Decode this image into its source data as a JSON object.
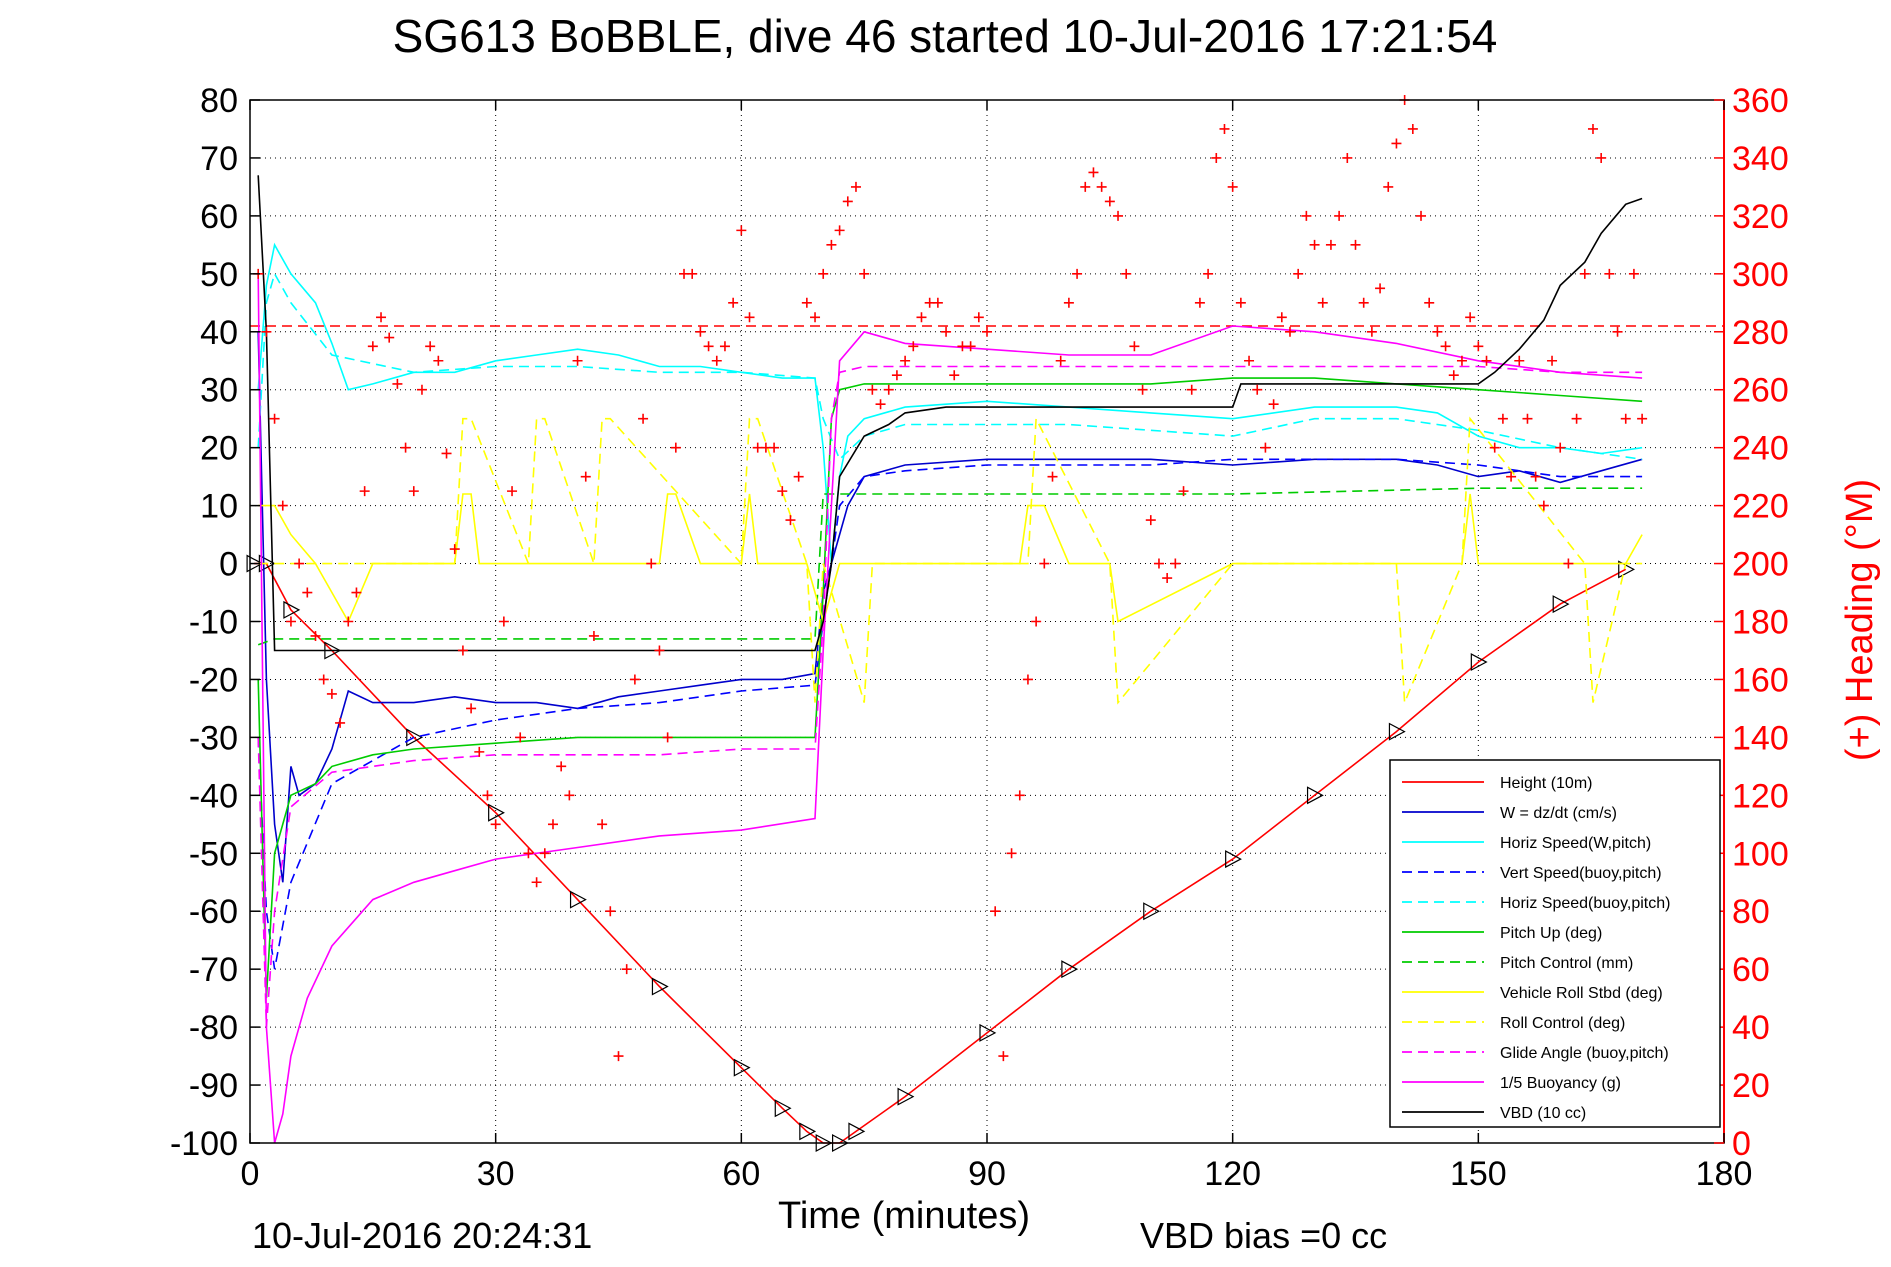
{
  "chart_data": {
    "type": "line",
    "title": "SG613 BoBBLE, dive 46 started 10-Jul-2016 17:21:54",
    "xlabel": "Time (minutes)",
    "ylabel_right": "(+) Heading (°M)",
    "footer_left": "10-Jul-2016 20:24:31",
    "footer_right": "VBD bias =0 cc",
    "xlim": [
      0,
      180
    ],
    "ylim_left": [
      -100,
      80
    ],
    "ylim_right": [
      0,
      360
    ],
    "x_ticks": [
      "0",
      "30",
      "60",
      "90",
      "120",
      "150",
      "180"
    ],
    "y_ticks_left": [
      "80",
      "70",
      "60",
      "50",
      "40",
      "30",
      "20",
      "10",
      "0",
      "-10",
      "-20",
      "-30",
      "-40",
      "-50",
      "-60",
      "-70",
      "-80",
      "-90",
      "-100"
    ],
    "y_ticks_right": [
      "360",
      "340",
      "320",
      "300",
      "280",
      "260",
      "240",
      "220",
      "200",
      "180",
      "160",
      "140",
      "120",
      "100",
      "80",
      "60",
      "40",
      "20",
      "0"
    ],
    "grid": true,
    "legend_position": "bottom-right",
    "series": [
      {
        "name": "Height (10m)",
        "color": "#ff0000",
        "style": "solid",
        "marker": "triangle",
        "x": [
          0.5,
          2,
          5,
          10,
          20,
          30,
          40,
          50,
          60,
          65,
          68,
          70,
          72,
          74,
          80,
          90,
          100,
          110,
          120,
          130,
          140,
          150,
          160,
          168
        ],
        "y": [
          0,
          0,
          -8,
          -15,
          -30,
          -43,
          -58,
          -73,
          -87,
          -94,
          -98,
          -100,
          -100,
          -98,
          -92,
          -81,
          -70,
          -60,
          -51,
          -40,
          -29,
          -17,
          -7,
          -1
        ]
      },
      {
        "name": "W = dz/dt (cm/s)",
        "color": "#0000cc",
        "style": "solid",
        "x": [
          1,
          2,
          3,
          4,
          5,
          6,
          8,
          10,
          12,
          15,
          20,
          25,
          30,
          35,
          40,
          45,
          50,
          55,
          60,
          65,
          69,
          70,
          71,
          72,
          73,
          75,
          80,
          90,
          100,
          110,
          120,
          130,
          140,
          145,
          150,
          155,
          160,
          165,
          170
        ],
        "y": [
          40,
          -20,
          -45,
          -55,
          -35,
          -40,
          -38,
          -32,
          -22,
          -24,
          -24,
          -23,
          -24,
          -24,
          -25,
          -23,
          -22,
          -21,
          -20,
          -20,
          -19,
          -5,
          0,
          5,
          10,
          15,
          17,
          18,
          18,
          18,
          17,
          18,
          18,
          17,
          15,
          16,
          14,
          16,
          18
        ]
      },
      {
        "name": "Horiz Speed(W,pitch)",
        "color": "#00ffff",
        "style": "solid",
        "x": [
          1,
          2,
          3,
          5,
          8,
          10,
          12,
          15,
          20,
          25,
          30,
          35,
          40,
          45,
          50,
          55,
          60,
          65,
          69,
          70,
          71,
          72,
          73,
          75,
          80,
          90,
          100,
          110,
          120,
          130,
          140,
          145,
          150,
          155,
          160,
          165,
          170
        ],
        "y": [
          30,
          48,
          55,
          50,
          45,
          38,
          30,
          31,
          33,
          33,
          35,
          36,
          37,
          36,
          34,
          34,
          33,
          32,
          32,
          20,
          0,
          15,
          22,
          25,
          27,
          28,
          27,
          26,
          25,
          27,
          27,
          26,
          22,
          20,
          20,
          19,
          20
        ]
      },
      {
        "name": "Vert Speed(buoy,pitch)",
        "color": "#0000ff",
        "style": "dashed",
        "x": [
          1,
          2,
          3,
          5,
          10,
          20,
          30,
          40,
          50,
          60,
          69,
          70,
          71,
          72,
          75,
          80,
          90,
          100,
          110,
          120,
          130,
          140,
          150,
          160,
          170
        ],
        "y": [
          -30,
          -60,
          -70,
          -55,
          -38,
          -30,
          -27,
          -25,
          -24,
          -22,
          -21,
          -10,
          0,
          10,
          15,
          16,
          17,
          17,
          17,
          18,
          18,
          18,
          17,
          15,
          15
        ]
      },
      {
        "name": "Horiz Speed(buoy,pitch)",
        "color": "#00ffff",
        "style": "dashed",
        "x": [
          1,
          2,
          3,
          5,
          10,
          20,
          30,
          40,
          50,
          60,
          69,
          70,
          72,
          75,
          80,
          90,
          100,
          110,
          120,
          130,
          140,
          150,
          160,
          170
        ],
        "y": [
          20,
          45,
          50,
          45,
          36,
          33,
          34,
          34,
          33,
          33,
          32,
          25,
          18,
          22,
          24,
          24,
          24,
          23,
          22,
          25,
          25,
          23,
          20,
          18
        ]
      },
      {
        "name": "Pitch Up (deg)",
        "color": "#00cc00",
        "style": "solid",
        "x": [
          1,
          2,
          3,
          5,
          8,
          10,
          15,
          20,
          30,
          40,
          50,
          60,
          69,
          70,
          71,
          72,
          75,
          80,
          90,
          100,
          110,
          120,
          130,
          140,
          150,
          160,
          170
        ],
        "y": [
          -20,
          -75,
          -50,
          -40,
          -38,
          -35,
          -33,
          -32,
          -31,
          -30,
          -30,
          -30,
          -30,
          -5,
          25,
          30,
          31,
          31,
          31,
          31,
          31,
          32,
          32,
          31,
          30,
          29,
          28
        ]
      },
      {
        "name": "Pitch Control (mm)",
        "color": "#00cc00",
        "style": "dashed",
        "x": [
          1,
          3,
          69,
          70,
          75,
          120,
          150,
          170
        ],
        "y": [
          -14,
          -13,
          -13,
          12,
          12,
          12,
          13,
          13
        ]
      },
      {
        "name": "Vehicle Roll Stbd (deg)",
        "color": "#ffff00",
        "style": "solid",
        "x": [
          1,
          3,
          5,
          8,
          10,
          12,
          15,
          20,
          25,
          26,
          27,
          28,
          30,
          35,
          50,
          51,
          52,
          55,
          60,
          61,
          62,
          68,
          70,
          72,
          75,
          80,
          94,
          95,
          97,
          100,
          105,
          106,
          120,
          140,
          148,
          149,
          150,
          160,
          168,
          170
        ],
        "y": [
          10,
          10,
          5,
          0,
          -5,
          -10,
          0,
          0,
          0,
          12,
          12,
          0,
          0,
          0,
          0,
          12,
          12,
          0,
          0,
          12,
          0,
          0,
          -10,
          0,
          0,
          0,
          0,
          10,
          10,
          0,
          0,
          -10,
          0,
          0,
          0,
          12,
          0,
          0,
          0,
          5
        ]
      },
      {
        "name": "Roll Control (deg)",
        "color": "#ffff00",
        "style": "dashed",
        "x": [
          1,
          5,
          10,
          25,
          26,
          27,
          34,
          35,
          36,
          42,
          43,
          44,
          60,
          61,
          62,
          68,
          69,
          70,
          75,
          76,
          95,
          96,
          105,
          106,
          120,
          140,
          141,
          148,
          149,
          163,
          164,
          168,
          170
        ],
        "y": [
          0,
          0,
          0,
          0,
          25,
          25,
          0,
          25,
          25,
          0,
          25,
          25,
          0,
          25,
          25,
          0,
          -24,
          0,
          -24,
          0,
          0,
          25,
          0,
          -24,
          0,
          0,
          -24,
          0,
          25,
          0,
          -24,
          0,
          0
        ]
      },
      {
        "name": "Glide Angle (buoy,pitch)",
        "color": "#ff00ff",
        "style": "dashed",
        "x": [
          1,
          2,
          3,
          5,
          10,
          20,
          30,
          40,
          50,
          60,
          69,
          70,
          71,
          72,
          75,
          80,
          90,
          100,
          110,
          120,
          130,
          140,
          150,
          160,
          170
        ],
        "y": [
          -30,
          -80,
          -60,
          -42,
          -36,
          -34,
          -33,
          -33,
          -33,
          -32,
          -32,
          -10,
          25,
          33,
          34,
          34,
          34,
          34,
          34,
          34,
          34,
          34,
          34,
          33,
          33
        ]
      },
      {
        "name": "1/5 Buoyancy (g)",
        "color": "#ff00ff",
        "style": "solid",
        "x": [
          1,
          2,
          3,
          4,
          5,
          7,
          10,
          15,
          20,
          25,
          30,
          40,
          50,
          60,
          69,
          70,
          72,
          75,
          80,
          90,
          100,
          110,
          120,
          130,
          140,
          150,
          160,
          170
        ],
        "y": [
          50,
          -80,
          -100,
          -95,
          -85,
          -75,
          -66,
          -58,
          -55,
          -53,
          -51,
          -49,
          -47,
          -46,
          -44,
          -15,
          35,
          40,
          38,
          37,
          36,
          36,
          41,
          40,
          38,
          35,
          33,
          32
        ]
      },
      {
        "name": "VBD (10 cc)",
        "color": "#000000",
        "style": "solid",
        "x": [
          1,
          2,
          3,
          69,
          70,
          71,
          72,
          75,
          78,
          80,
          85,
          90,
          100,
          120,
          121,
          150,
          152,
          155,
          158,
          160,
          163,
          165,
          168,
          170
        ],
        "y": [
          67,
          40,
          -15,
          -15,
          -10,
          0,
          15,
          22,
          24,
          26,
          27,
          27,
          27,
          27,
          31,
          31,
          33,
          37,
          42,
          48,
          52,
          57,
          62,
          63
        ]
      }
    ],
    "heading_series": {
      "name": "(+) Heading (°M)",
      "color": "#ff0000",
      "marker": "+",
      "reference_heading": 282,
      "x": [
        1,
        2,
        3,
        4,
        5,
        6,
        7,
        8,
        9,
        10,
        11,
        12,
        13,
        14,
        15,
        16,
        17,
        18,
        19,
        20,
        21,
        22,
        23,
        24,
        25,
        26,
        27,
        28,
        29,
        30,
        31,
        32,
        33,
        34,
        35,
        36,
        37,
        38,
        39,
        40,
        41,
        42,
        43,
        44,
        45,
        46,
        47,
        48,
        49,
        50,
        51,
        52,
        53,
        54,
        55,
        56,
        57,
        58,
        59,
        60,
        61,
        62,
        63,
        64,
        65,
        66,
        67,
        68,
        69,
        70,
        71,
        72,
        73,
        74,
        75,
        76,
        77,
        78,
        79,
        80,
        81,
        82,
        83,
        84,
        85,
        86,
        87,
        88,
        89,
        90,
        91,
        92,
        93,
        94,
        95,
        96,
        97,
        98,
        99,
        100,
        101,
        102,
        103,
        104,
        105,
        106,
        107,
        108,
        109,
        110,
        111,
        112,
        113,
        114,
        115,
        116,
        117,
        118,
        119,
        120,
        121,
        122,
        123,
        124,
        125,
        126,
        127,
        128,
        129,
        130,
        131,
        132,
        133,
        134,
        135,
        136,
        137,
        138,
        139,
        140,
        141,
        142,
        143,
        144,
        145,
        146,
        147,
        148,
        149,
        150,
        151,
        152,
        153,
        154,
        155,
        156,
        157,
        158,
        159,
        160,
        161,
        162,
        163,
        164,
        165,
        166,
        167,
        168,
        169,
        170
      ],
      "y": [
        300,
        280,
        250,
        220,
        180,
        200,
        190,
        175,
        160,
        155,
        145,
        180,
        190,
        225,
        275,
        285,
        278,
        262,
        240,
        225,
        260,
        275,
        270,
        238,
        205,
        170,
        150,
        135,
        120,
        110,
        180,
        225,
        140,
        100,
        90,
        100,
        110,
        130,
        120,
        270,
        230,
        175,
        110,
        80,
        30,
        60,
        160,
        250,
        200,
        170,
        140,
        240,
        300,
        300,
        280,
        275,
        270,
        275,
        290,
        315,
        285,
        240,
        240,
        240,
        225,
        215,
        230,
        290,
        285,
        300,
        310,
        315,
        325,
        330,
        300,
        260,
        255,
        260,
        265,
        270,
        275,
        285,
        290,
        290,
        280,
        265,
        275,
        275,
        285,
        280,
        80,
        30,
        100,
        120,
        160,
        180,
        200,
        230,
        270,
        290,
        300,
        330,
        335,
        330,
        325,
        320,
        300,
        275,
        260,
        215,
        200,
        195,
        200,
        225,
        260,
        290,
        300,
        340,
        350,
        330,
        290,
        270,
        260,
        240,
        255,
        285,
        280,
        300,
        320,
        310,
        290,
        310,
        320,
        340,
        310,
        290,
        280,
        295,
        330,
        345,
        360,
        350,
        320,
        290,
        280,
        275,
        265,
        270,
        285,
        275,
        270,
        240,
        250,
        230,
        270,
        250,
        230,
        220,
        270,
        240,
        200,
        250,
        300,
        350,
        340,
        300,
        280,
        250,
        300,
        250
      ]
    }
  }
}
